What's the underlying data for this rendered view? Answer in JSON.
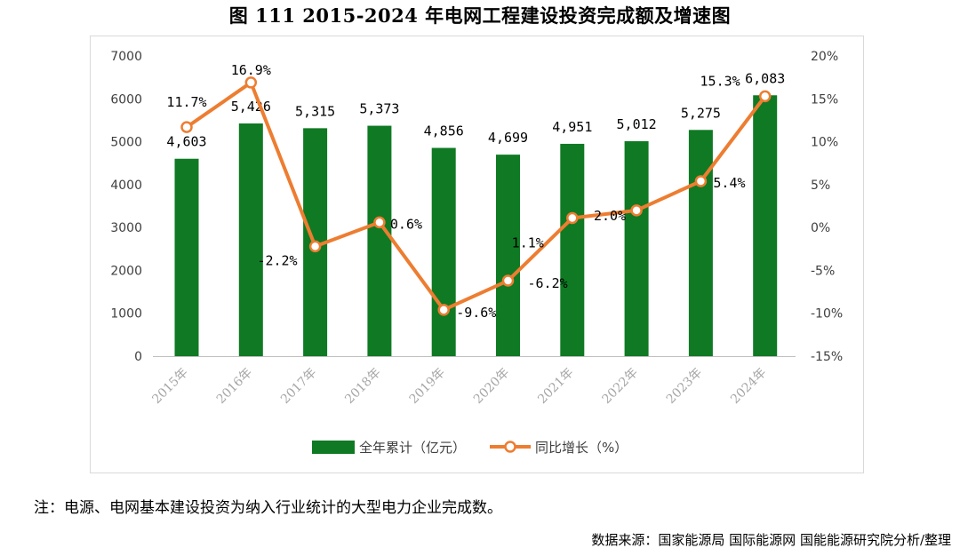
{
  "title": "图 111 2015-2024 年电网工程建设投资完成额及增速图",
  "note": "注：电源、电网基本建设投资为纳入行业统计的大型电力企业完成数。",
  "source": "数据来源：国家能源局 国际能源网 国能能源研究院分析/整理",
  "colors": {
    "bar": "#0f7a23",
    "line": "#ed7d31",
    "marker_fill": "#ffffff"
  },
  "chart_data": {
    "type": "bar+line",
    "categories": [
      "2015年",
      "2016年",
      "2017年",
      "2018年",
      "2019年",
      "2020年",
      "2021年",
      "2022年",
      "2023年",
      "2024年"
    ],
    "series": [
      {
        "name": "全年累计（亿元）",
        "type": "bar",
        "axis": "left",
        "values": [
          4603,
          5426,
          5315,
          5373,
          4856,
          4699,
          4951,
          5012,
          5275,
          6083
        ],
        "labels": [
          "4,603",
          "5,426",
          "5,315",
          "5,373",
          "4,856",
          "4,699",
          "4,951",
          "5,012",
          "5,275",
          "6,083"
        ]
      },
      {
        "name": "同比增长（%）",
        "type": "line",
        "axis": "right",
        "values": [
          11.7,
          16.9,
          -2.2,
          0.6,
          -9.6,
          -6.2,
          1.1,
          2.0,
          5.4,
          15.3
        ],
        "labels": [
          "11.7%",
          "16.9%",
          "-2.2%",
          "0.6%",
          "-9.6%",
          "-6.2%",
          "1.1%",
          "2.0%",
          "5.4%",
          "15.3%"
        ]
      }
    ],
    "y_left": {
      "range": [
        0,
        7000
      ],
      "ticks": [
        "0",
        "1000",
        "2000",
        "3000",
        "4000",
        "5000",
        "6000",
        "7000"
      ]
    },
    "y_right": {
      "range": [
        -15,
        20
      ],
      "ticks": [
        "-15%",
        "-10%",
        "-5%",
        "0%",
        "5%",
        "10%",
        "15%",
        "20%"
      ]
    },
    "grid": false,
    "legend": "bottom"
  }
}
